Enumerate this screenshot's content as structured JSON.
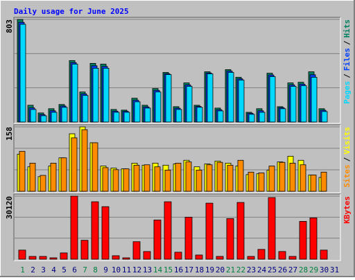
{
  "title": "Daily usage for June 2025",
  "legend_separator": "/",
  "chart_data": [
    {
      "type": "bar",
      "ylim": [
        0,
        803
      ],
      "yticks": [
        803
      ],
      "series": [
        {
          "name": "Hits",
          "color": "#008060",
          "values": [
            803,
            131,
            71,
            104,
            137,
            481,
            235,
            459,
            453,
            98,
            93,
            186,
            131,
            262,
            388,
            120,
            306,
            131,
            393,
            109,
            410,
            350,
            76,
            104,
            382,
            120,
            306,
            311,
            393,
            104,
            null
          ]
        },
        {
          "name": "Files",
          "color": "#0040ff",
          "values": [
            780,
            110,
            58,
            88,
            125,
            465,
            220,
            440,
            435,
            85,
            84,
            170,
            118,
            248,
            378,
            108,
            290,
            122,
            384,
            96,
            398,
            338,
            68,
            88,
            368,
            112,
            290,
            296,
            370,
            92,
            null
          ]
        },
        {
          "name": "Pages",
          "color": "#00d8ff",
          "values": [
            765,
            98,
            49,
            76,
            115,
            453,
            208,
            421,
            421,
            76,
            76,
            158,
            109,
            235,
            371,
            98,
            279,
            115,
            377,
            87,
            388,
            328,
            60,
            76,
            355,
            104,
            279,
            284,
            350,
            82,
            null
          ]
        }
      ]
    },
    {
      "type": "bar",
      "ylim": [
        0,
        158
      ],
      "yticks": [
        158
      ],
      "series": [
        {
          "name": "Visits",
          "color": "#ffff00",
          "values": [
            91,
            60,
            36,
            62,
            82,
            141,
            158,
            119,
            62,
            57,
            55,
            69,
            64,
            69,
            64,
            67,
            76,
            60,
            67,
            74,
            69,
            62,
            41,
            43,
            52,
            72,
            86,
            76,
            40,
            34,
            null
          ]
        },
        {
          "name": "Sites",
          "color": "#ff8c00",
          "values": [
            98,
            69,
            39,
            69,
            82,
            131,
            151,
            119,
            58,
            53,
            55,
            64,
            65,
            60,
            52,
            69,
            72,
            52,
            65,
            71,
            64,
            76,
            47,
            45,
            62,
            71,
            69,
            65,
            40,
            47,
            null
          ]
        }
      ]
    },
    {
      "type": "bar",
      "ylim": [
        0,
        30120
      ],
      "yticks": [
        30120
      ],
      "categories": [
        "1",
        "2",
        "3",
        "4",
        "5",
        "6",
        "7",
        "8",
        "9",
        "10",
        "11",
        "12",
        "13",
        "14",
        "15",
        "16",
        "17",
        "18",
        "19",
        "20",
        "21",
        "22",
        "23",
        "24",
        "25",
        "26",
        "27",
        "28",
        "29",
        "30",
        "31"
      ],
      "weekend_categories": [
        1,
        7,
        8,
        14,
        15,
        21,
        22,
        28,
        29
      ],
      "weekday_color": "#000080",
      "weekend_color": "#008040",
      "series": [
        {
          "name": "KBytes",
          "color": "#ff0000",
          "values": [
            4350,
            1340,
            1340,
            670,
            3010,
            30120,
            9040,
            27440,
            25100,
            1670,
            670,
            8370,
            3680,
            18740,
            27440,
            3350,
            20080,
            2010,
            26770,
            1340,
            19410,
            27110,
            1340,
            4690,
            29450,
            3680,
            1340,
            18070,
            19750,
            4350,
            null
          ]
        }
      ]
    }
  ]
}
